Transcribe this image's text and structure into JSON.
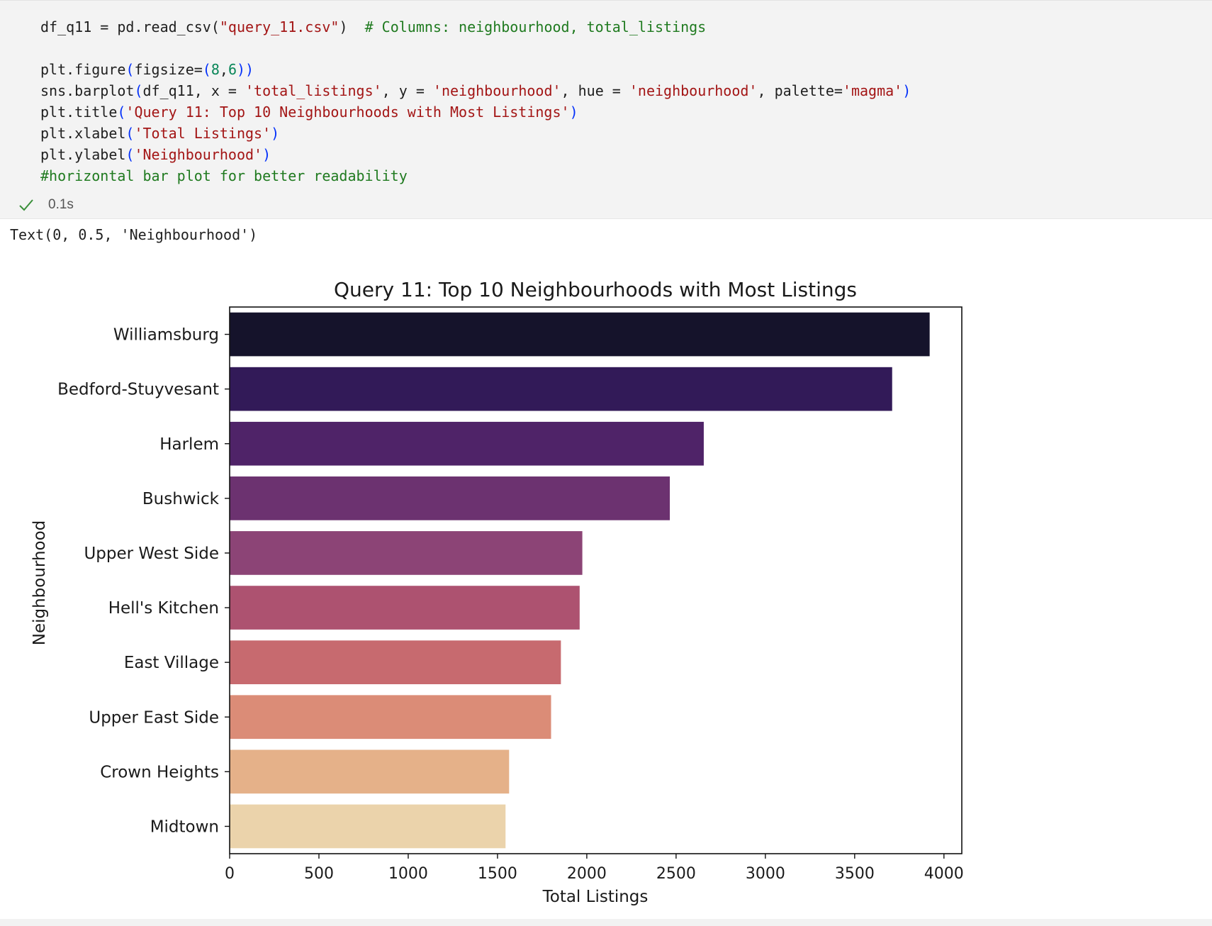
{
  "code_cell": {
    "lines": [
      [
        {
          "t": "df_q11 = pd.read_csv("
        },
        {
          "t": "\"query_11.csv\"",
          "c": "str"
        },
        {
          "t": ")  "
        },
        {
          "t": "# Columns: neighbourhood, total_listings",
          "c": "com"
        }
      ],
      [],
      [
        {
          "t": "plt.figure"
        },
        {
          "t": "(",
          "c": "par"
        },
        {
          "t": "figsize="
        },
        {
          "t": "(",
          "c": "par"
        },
        {
          "t": "8",
          "c": "num"
        },
        {
          "t": ","
        },
        {
          "t": "6",
          "c": "num"
        },
        {
          "t": "))",
          "c": "par"
        }
      ],
      [
        {
          "t": "sns.barplot"
        },
        {
          "t": "(",
          "c": "par"
        },
        {
          "t": "df_q11, x = "
        },
        {
          "t": "'total_listings'",
          "c": "str"
        },
        {
          "t": ", y = "
        },
        {
          "t": "'neighbourhood'",
          "c": "str"
        },
        {
          "t": ", hue = "
        },
        {
          "t": "'neighbourhood'",
          "c": "str"
        },
        {
          "t": ", palette="
        },
        {
          "t": "'magma'",
          "c": "str"
        },
        {
          "t": ")",
          "c": "par"
        }
      ],
      [
        {
          "t": "plt.title"
        },
        {
          "t": "(",
          "c": "par"
        },
        {
          "t": "'Query 11: Top 10 Neighbourhoods with Most Listings'",
          "c": "str"
        },
        {
          "t": ")",
          "c": "par"
        }
      ],
      [
        {
          "t": "plt.xlabel"
        },
        {
          "t": "(",
          "c": "par"
        },
        {
          "t": "'Total Listings'",
          "c": "str"
        },
        {
          "t": ")",
          "c": "par"
        }
      ],
      [
        {
          "t": "plt.ylabel"
        },
        {
          "t": "(",
          "c": "par"
        },
        {
          "t": "'Neighbourhood'",
          "c": "str"
        },
        {
          "t": ")",
          "c": "par"
        }
      ],
      [
        {
          "t": "#horizontal bar plot for better readability",
          "c": "com"
        }
      ]
    ],
    "status_icon": "checkmark-icon",
    "execution_time": "0.1s",
    "colors": {
      "string": "#a31515",
      "comment": "#1f7a1f",
      "number": "#098658",
      "paren": "#0431fa",
      "success": "#3a8f3a"
    }
  },
  "output": {
    "text": "Text(0, 0.5, 'Neighbourhood')"
  },
  "chart_data": {
    "type": "bar",
    "orientation": "horizontal",
    "title": "Query 11: Top 10 Neighbourhoods with Most Listings",
    "xlabel": "Total Listings",
    "ylabel": "Neighbourhood",
    "categories": [
      "Williamsburg",
      "Bedford-Stuyvesant",
      "Harlem",
      "Bushwick",
      "Upper West Side",
      "Hell's Kitchen",
      "East Village",
      "Upper East Side",
      "Crown Heights",
      "Midtown"
    ],
    "values": [
      3920,
      3710,
      2655,
      2465,
      1975,
      1960,
      1855,
      1800,
      1565,
      1545
    ],
    "colors": [
      "#15132b",
      "#321a58",
      "#4f2368",
      "#6c3270",
      "#8c4476",
      "#ad5270",
      "#c76a6f",
      "#db8c77",
      "#e5b189",
      "#ebd3ab"
    ],
    "xlim": [
      0,
      4100
    ],
    "xticks": [
      0,
      500,
      1000,
      1500,
      2000,
      2500,
      3000,
      3500,
      4000
    ],
    "grid": false,
    "legend": "none",
    "palette": "magma"
  }
}
